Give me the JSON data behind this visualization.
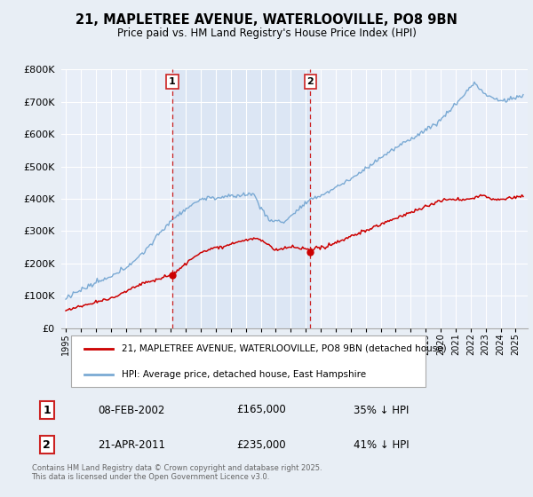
{
  "title_line1": "21, MAPLETREE AVENUE, WATERLOOVILLE, PO8 9BN",
  "title_line2": "Price paid vs. HM Land Registry's House Price Index (HPI)",
  "legend_label_red": "21, MAPLETREE AVENUE, WATERLOOVILLE, PO8 9BN (detached house)",
  "legend_label_blue": "HPI: Average price, detached house, East Hampshire",
  "annotation1_date": "08-FEB-2002",
  "annotation1_price": "£165,000",
  "annotation1_pct": "35% ↓ HPI",
  "annotation2_date": "21-APR-2011",
  "annotation2_price": "£235,000",
  "annotation2_pct": "41% ↓ HPI",
  "footer": "Contains HM Land Registry data © Crown copyright and database right 2025.\nThis data is licensed under the Open Government Licence v3.0.",
  "vline1_x": 2002.1,
  "vline2_x": 2011.3,
  "sale1_x": 2002.1,
  "sale1_y": 165000,
  "sale2_x": 2011.3,
  "sale2_y": 235000,
  "background_color": "#e8eef5",
  "plot_bg_color": "#e8eef8",
  "shade_color": "#c8d8ee",
  "red_color": "#cc0000",
  "blue_color": "#7baad4",
  "vline_color": "#cc2222",
  "ylim": [
    0,
    800000
  ],
  "yticks": [
    0,
    100000,
    200000,
    300000,
    400000,
    500000,
    600000,
    700000,
    800000
  ],
  "ytick_labels": [
    "£0",
    "£100K",
    "£200K",
    "£300K",
    "£400K",
    "£500K",
    "£600K",
    "£700K",
    "£800K"
  ],
  "xlim_left": 1994.7,
  "xlim_right": 2025.8,
  "xstart": 1995,
  "xend": 2025
}
